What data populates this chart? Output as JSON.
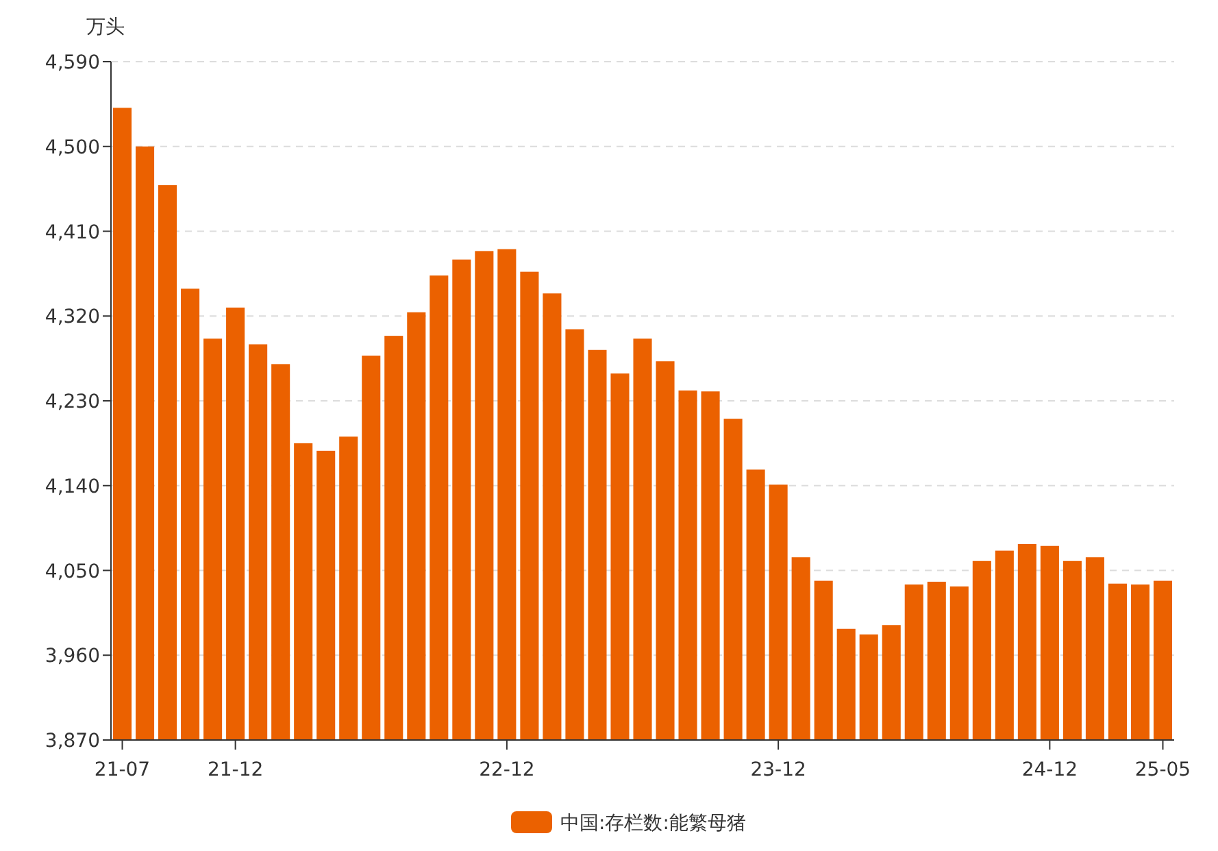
{
  "chart_data": {
    "type": "bar",
    "ylabel": "万头",
    "categories": [
      "21-07",
      null,
      null,
      null,
      null,
      "21-12",
      null,
      null,
      null,
      null,
      null,
      null,
      null,
      null,
      null,
      null,
      null,
      "22-12",
      null,
      null,
      null,
      null,
      null,
      null,
      null,
      null,
      null,
      null,
      null,
      "23-12",
      null,
      null,
      null,
      null,
      null,
      null,
      null,
      null,
      null,
      null,
      null,
      "24-12",
      null,
      null,
      null,
      null,
      "25-05"
    ],
    "series": [
      {
        "name": "中国:存栏数:能繁母猪",
        "color": "#eb6100",
        "values": [
          4541,
          4500,
          4459,
          4349,
          4296,
          4329,
          4290,
          4269,
          4185,
          4177,
          4192,
          4278,
          4299,
          4324,
          4363,
          4380,
          4389,
          4391,
          4367,
          4344,
          4306,
          4284,
          4259,
          4296,
          4272,
          4241,
          4240,
          4211,
          4157,
          4141,
          4064,
          4039,
          3988,
          3982,
          3992,
          4035,
          4038,
          4033,
          4060,
          4071,
          4078,
          4076,
          4060,
          4064,
          4036,
          4035,
          4039
        ]
      }
    ],
    "ylim": [
      3870,
      4590
    ],
    "yticks": [
      {
        "value": 3870,
        "label": "3,870"
      },
      {
        "value": 3960,
        "label": "3,960"
      },
      {
        "value": 4050,
        "label": "4,050"
      },
      {
        "value": 4140,
        "label": "4,140"
      },
      {
        "value": 4230,
        "label": "4,230"
      },
      {
        "value": 4320,
        "label": "4,320"
      },
      {
        "value": 4410,
        "label": "4,410"
      },
      {
        "value": 4500,
        "label": "4,500"
      },
      {
        "value": 4590,
        "label": "4,590"
      }
    ],
    "grid": "y",
    "legend": "bottom"
  }
}
